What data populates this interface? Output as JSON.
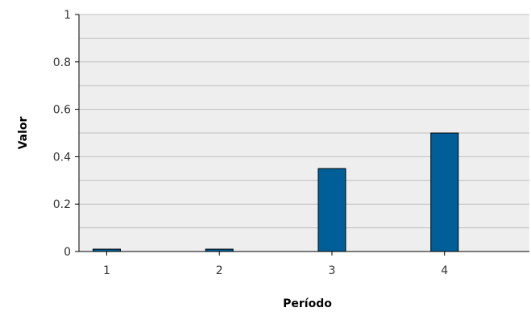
{
  "chart_data": {
    "type": "bar",
    "title": "",
    "xlabel": "Período",
    "ylabel": "Valor",
    "categories": [
      "1",
      "2",
      "3",
      "4"
    ],
    "series": [
      {
        "values": [
          0.01,
          0.01,
          0.35,
          0.5
        ]
      }
    ],
    "ylim": [
      0,
      1
    ],
    "yticks": [
      0,
      0.2,
      0.4,
      0.6,
      0.8,
      1
    ],
    "ytick_labels": [
      "0",
      "0.2",
      "0.4",
      "0.6",
      "0.8",
      "1"
    ],
    "grid": true,
    "colors": {
      "bar_fill": "#005f99",
      "bar_stroke": "#000000",
      "plot_background": "#eeeeee",
      "grid": "#bfbfbf",
      "axis": "#000000"
    }
  }
}
